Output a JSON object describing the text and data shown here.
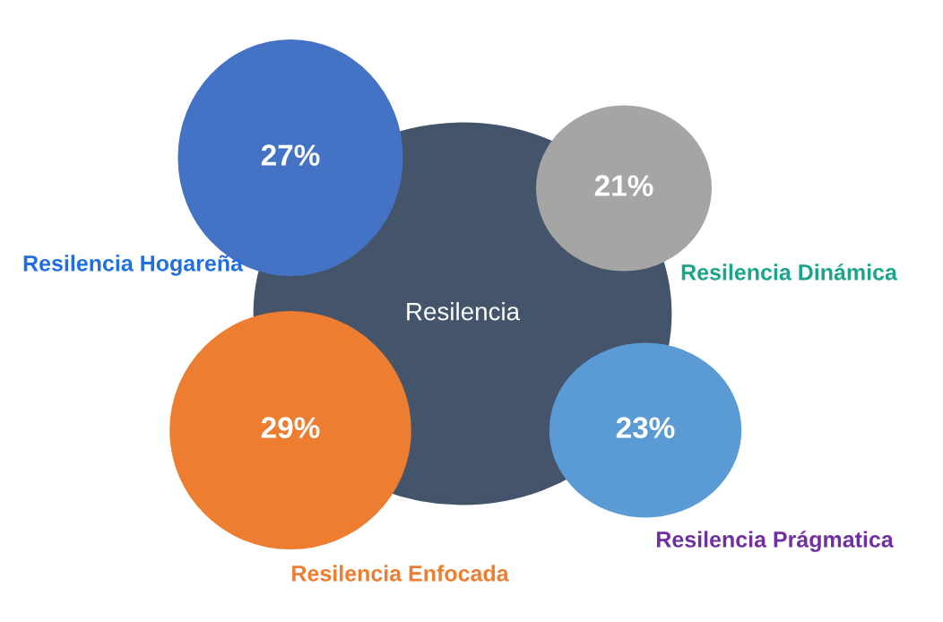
{
  "chart_data": {
    "type": "other",
    "categories": [
      "Resilencia Hogareña",
      "Resilencia Dinámica",
      "Resilencia Enfocada",
      "Resilencia Prágmatica"
    ],
    "values": [
      27,
      21,
      29,
      23
    ],
    "value_labels": [
      "27%",
      "21%",
      "29%",
      "23%"
    ],
    "colors": [
      "#4472c4",
      "#a5a5a5",
      "#ed7d31",
      "#5b9bd5"
    ],
    "annotations": [
      "Resilencia"
    ],
    "data_labels": true
  }
}
